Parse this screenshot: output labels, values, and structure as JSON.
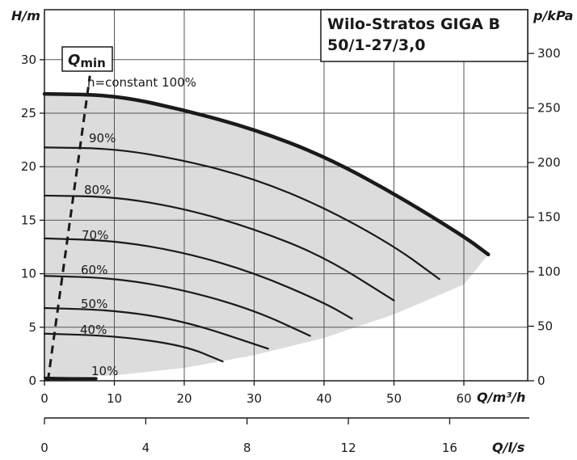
{
  "chart_data": {
    "type": "line",
    "title_lines": [
      "Wilo-Stratos GIGA B",
      "50/1-27/3,0"
    ],
    "xlabel": "Q/m³/h",
    "ylabel_left": "H/m",
    "ylabel_right": "p/kPa",
    "xlabel2": "Q/l/s",
    "xlim": [
      0,
      70
    ],
    "ylim": [
      0,
      34
    ],
    "x_ticks": [
      0,
      10,
      20,
      30,
      40,
      50,
      60
    ],
    "y_ticks": [
      0,
      5,
      10,
      15,
      20,
      25,
      30
    ],
    "y2_ticks": [
      0,
      50,
      100,
      150,
      200,
      250,
      300
    ],
    "x2_ticks": [
      0,
      4,
      8,
      12,
      16
    ],
    "grid": true,
    "qmin_label": "Qmin",
    "qmin_label_main": "Q",
    "qmin_label_sub": "min",
    "qmin_line": [
      {
        "x": 0.5,
        "y": 0
      },
      {
        "x": 6.5,
        "y": 28.5
      }
    ],
    "qmin_floor": {
      "x_end": 7.5,
      "y": 0.2
    },
    "envelope": [
      {
        "x": 0,
        "y": 0.3
      },
      {
        "x": 10,
        "y": 0.5
      },
      {
        "x": 20,
        "y": 1.2
      },
      {
        "x": 30,
        "y": 2.4
      },
      {
        "x": 40,
        "y": 4.0
      },
      {
        "x": 50,
        "y": 6.2
      },
      {
        "x": 60,
        "y": 9.0
      },
      {
        "x": 63.5,
        "y": 11.8
      }
    ],
    "series": [
      {
        "name": "n=constant 100%",
        "label": "n=constant 100%",
        "values": [
          {
            "x": 0,
            "y": 26.8
          },
          {
            "x": 10,
            "y": 26.7
          },
          {
            "x": 20,
            "y": 25.3
          },
          {
            "x": 30,
            "y": 23.5
          },
          {
            "x": 40,
            "y": 21.0
          },
          {
            "x": 50,
            "y": 17.5
          },
          {
            "x": 60,
            "y": 13.5
          },
          {
            "x": 63.5,
            "y": 11.8
          }
        ]
      },
      {
        "name": "90%",
        "label": "90%",
        "values": [
          {
            "x": 0,
            "y": 21.8
          },
          {
            "x": 10,
            "y": 21.7
          },
          {
            "x": 20,
            "y": 20.6
          },
          {
            "x": 30,
            "y": 18.9
          },
          {
            "x": 40,
            "y": 16.2
          },
          {
            "x": 50,
            "y": 12.6
          },
          {
            "x": 56.5,
            "y": 9.5
          }
        ]
      },
      {
        "name": "80%",
        "label": "80%",
        "values": [
          {
            "x": 0,
            "y": 17.3
          },
          {
            "x": 10,
            "y": 17.2
          },
          {
            "x": 20,
            "y": 16.1
          },
          {
            "x": 30,
            "y": 14.2
          },
          {
            "x": 40,
            "y": 11.6
          },
          {
            "x": 50,
            "y": 7.5
          }
        ]
      },
      {
        "name": "70%",
        "label": "70%",
        "values": [
          {
            "x": 0,
            "y": 13.3
          },
          {
            "x": 10,
            "y": 13.1
          },
          {
            "x": 20,
            "y": 12.0
          },
          {
            "x": 30,
            "y": 10.1
          },
          {
            "x": 40,
            "y": 7.3
          },
          {
            "x": 44,
            "y": 5.8
          }
        ]
      },
      {
        "name": "60%",
        "label": "60%",
        "values": [
          {
            "x": 0,
            "y": 9.8
          },
          {
            "x": 10,
            "y": 9.6
          },
          {
            "x": 20,
            "y": 8.5
          },
          {
            "x": 30,
            "y": 6.6
          },
          {
            "x": 38,
            "y": 4.2
          }
        ]
      },
      {
        "name": "50%",
        "label": "50%",
        "values": [
          {
            "x": 0,
            "y": 6.8
          },
          {
            "x": 10,
            "y": 6.6
          },
          {
            "x": 20,
            "y": 5.6
          },
          {
            "x": 32,
            "y": 3.0
          }
        ]
      },
      {
        "name": "40%",
        "label": "40%",
        "values": [
          {
            "x": 0,
            "y": 4.4
          },
          {
            "x": 10,
            "y": 4.2
          },
          {
            "x": 20,
            "y": 3.3
          },
          {
            "x": 25.5,
            "y": 1.8
          }
        ]
      },
      {
        "name": "10%",
        "label": "10%",
        "values": [
          {
            "x": 0,
            "y": 0.3
          },
          {
            "x": 7.5,
            "y": 0.2
          }
        ]
      }
    ]
  }
}
